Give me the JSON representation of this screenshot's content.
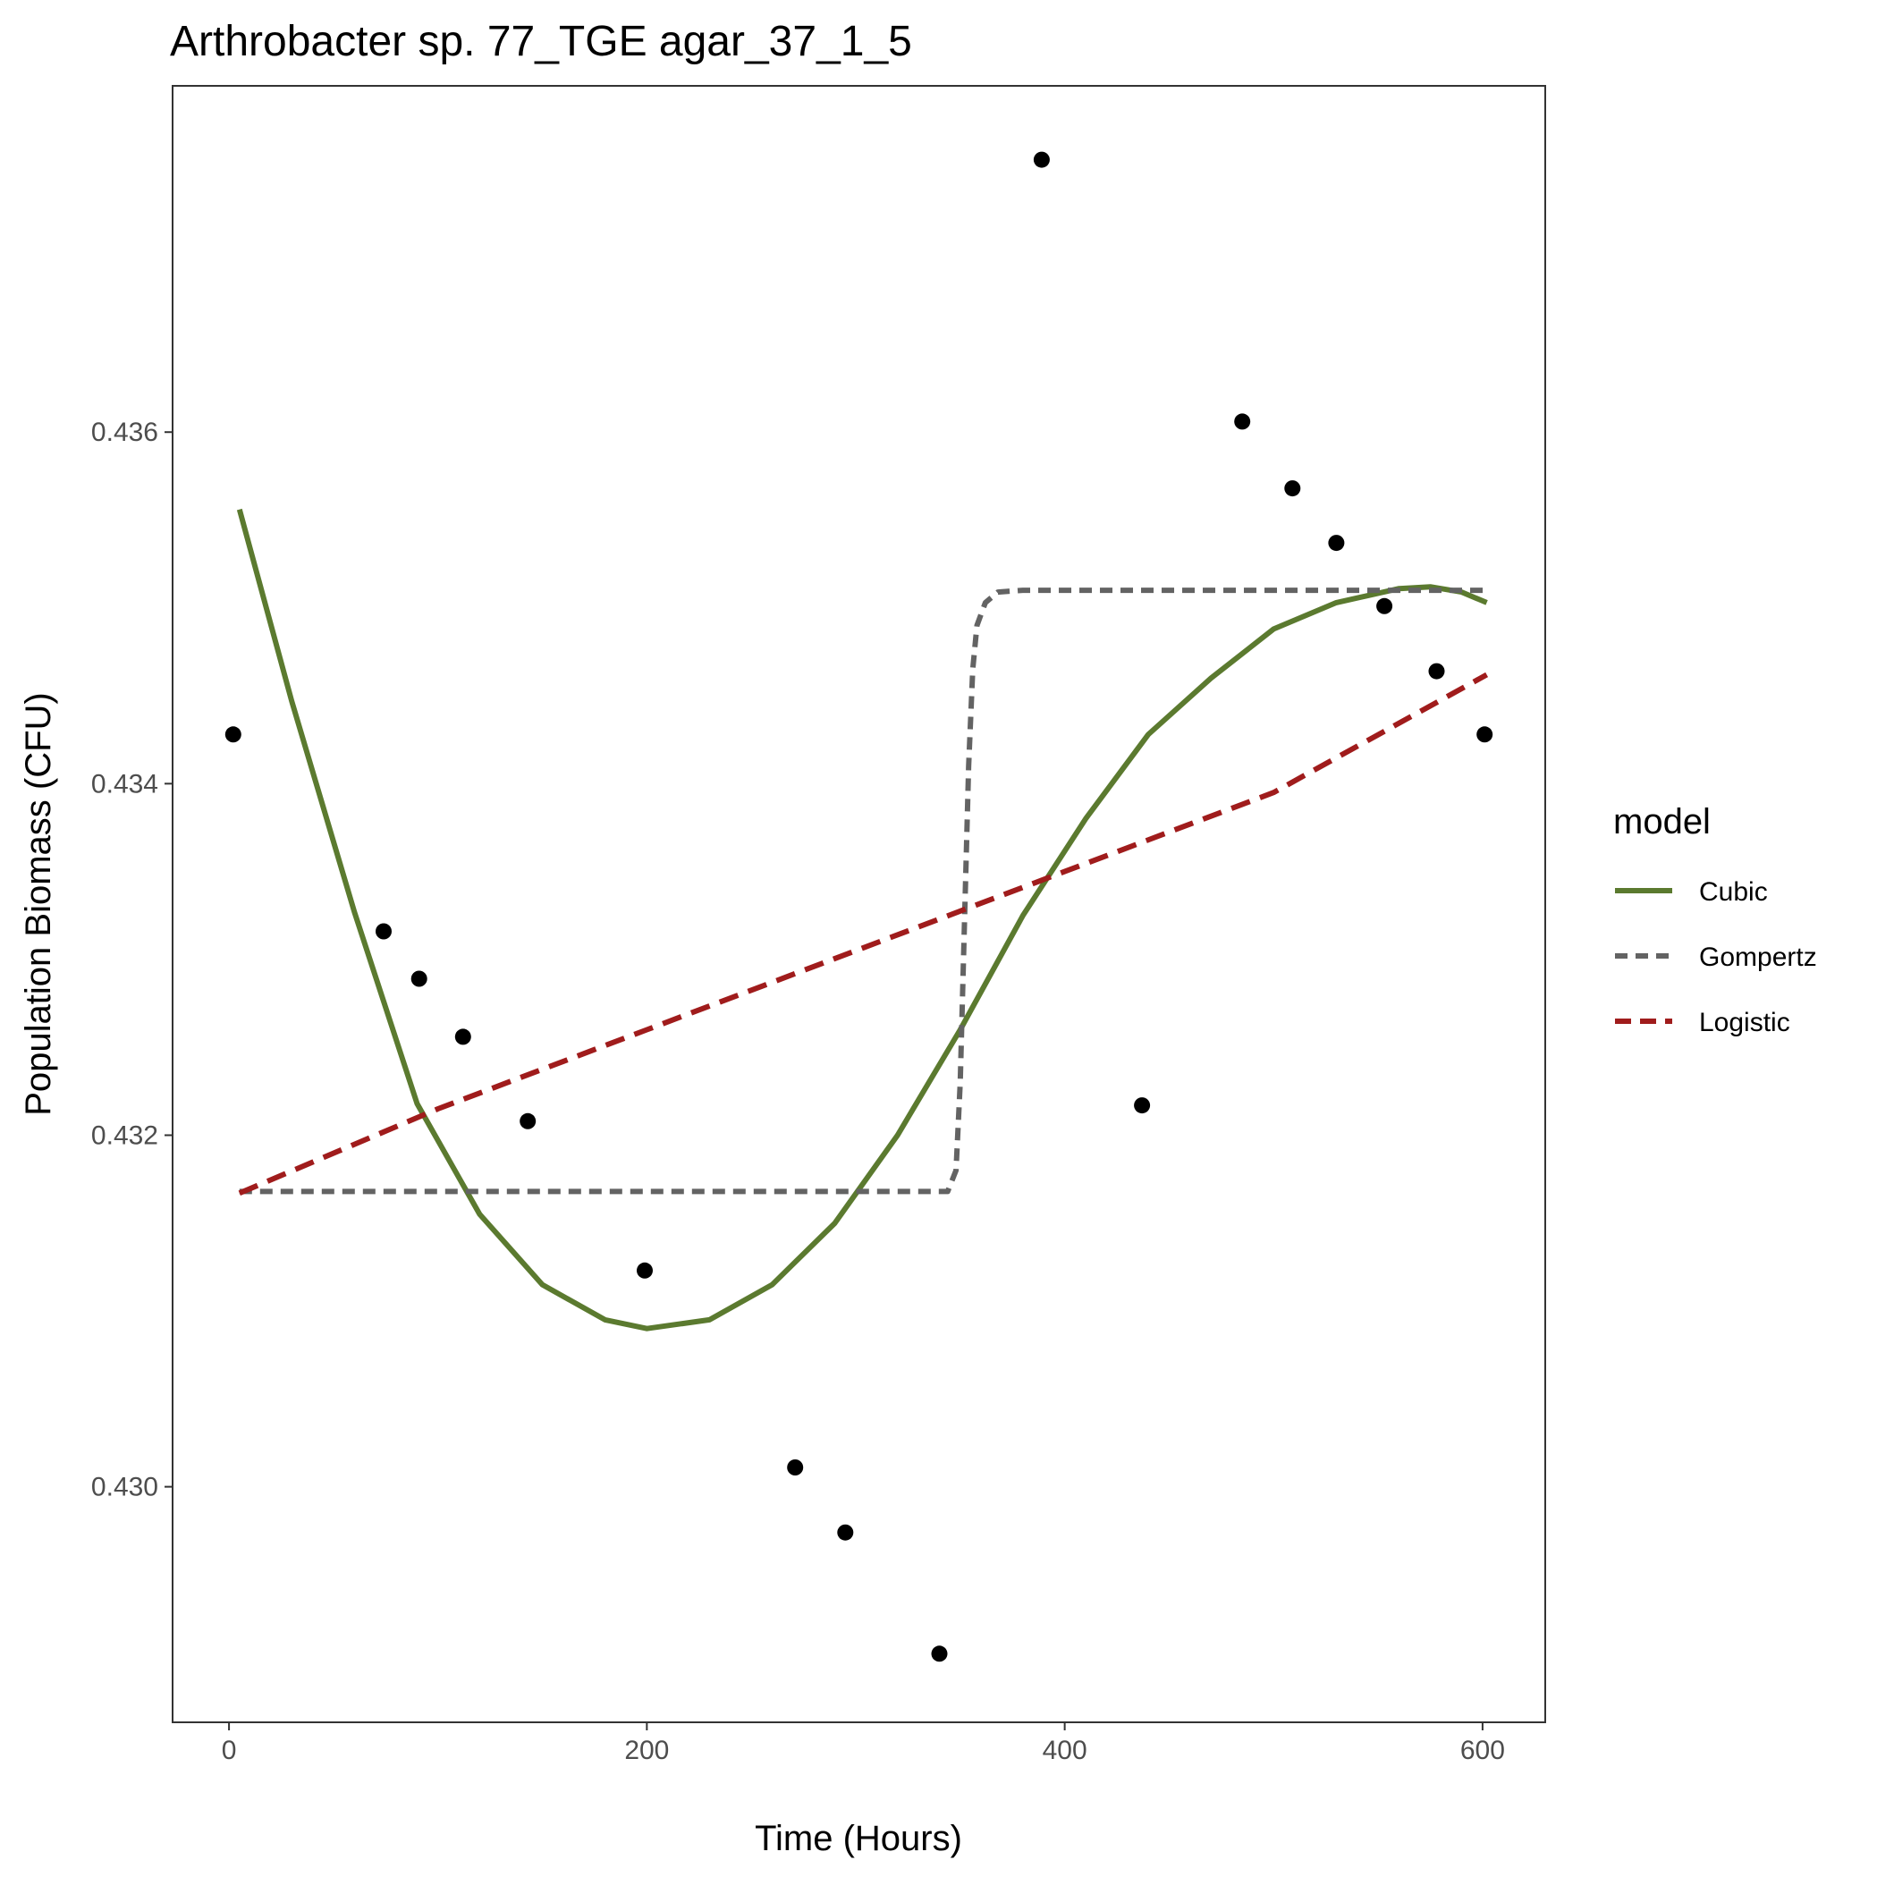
{
  "chart_data": {
    "type": "scatter",
    "title": "Arthrobacter sp. 77_TGE agar_37_1_5",
    "xlabel": "Time (Hours)",
    "ylabel": "Population Biomass (CFU)",
    "xlim": [
      -27,
      630
    ],
    "ylim": [
      0.42866,
      0.43797
    ],
    "x_ticks": [
      0,
      200,
      400,
      600
    ],
    "x_tick_labels": [
      "0",
      "200",
      "400",
      "600"
    ],
    "y_ticks": [
      0.43,
      0.432,
      0.434,
      0.436
    ],
    "y_tick_labels": [
      "0.430",
      "0.432",
      "0.434",
      "0.436"
    ],
    "grid": false,
    "legend_title": "model",
    "legend_position": "right",
    "points": {
      "color": "#000000",
      "x": [
        2,
        74,
        91,
        112,
        143,
        199,
        271,
        295,
        340,
        389,
        437,
        485,
        509,
        530,
        553,
        578,
        601
      ],
      "y": [
        0.43428,
        0.43316,
        0.43289,
        0.43256,
        0.43208,
        0.43123,
        0.43011,
        0.42974,
        0.42905,
        0.43755,
        0.43217,
        0.43606,
        0.43568,
        0.43537,
        0.43501,
        0.43464,
        0.43428
      ]
    },
    "series": [
      {
        "name": "Cubic",
        "color": "#5b7a2f",
        "line_style": "solid",
        "x": [
          5,
          30,
          60,
          90,
          120,
          150,
          180,
          200,
          230,
          260,
          290,
          320,
          350,
          380,
          410,
          440,
          470,
          500,
          530,
          560,
          575,
          590,
          602
        ],
        "y": [
          0.43556,
          0.43447,
          0.43327,
          0.43218,
          0.43155,
          0.43115,
          0.43095,
          0.4309,
          0.43095,
          0.43115,
          0.4315,
          0.432,
          0.4326,
          0.43325,
          0.4338,
          0.43428,
          0.4346,
          0.43488,
          0.43503,
          0.43511,
          0.43512,
          0.43509,
          0.43503
        ]
      },
      {
        "name": "Gompertz",
        "color": "#636363",
        "line_style": "dashed",
        "x": [
          5,
          100,
          200,
          300,
          344,
          348,
          350,
          352,
          354,
          356,
          358,
          362,
          368,
          380,
          400,
          500,
          602
        ],
        "y": [
          0.43168,
          0.43168,
          0.43168,
          0.43168,
          0.43168,
          0.4318,
          0.4323,
          0.4332,
          0.4341,
          0.43465,
          0.4349,
          0.43503,
          0.43509,
          0.4351,
          0.4351,
          0.4351,
          0.4351
        ]
      },
      {
        "name": "Logistic",
        "color": "#a01c1c",
        "line_style": "dashed",
        "x": [
          5,
          100,
          200,
          300,
          400,
          500,
          602
        ],
        "y": [
          0.43167,
          0.43215,
          0.4326,
          0.43305,
          0.4335,
          0.43395,
          0.43462
        ]
      }
    ]
  }
}
